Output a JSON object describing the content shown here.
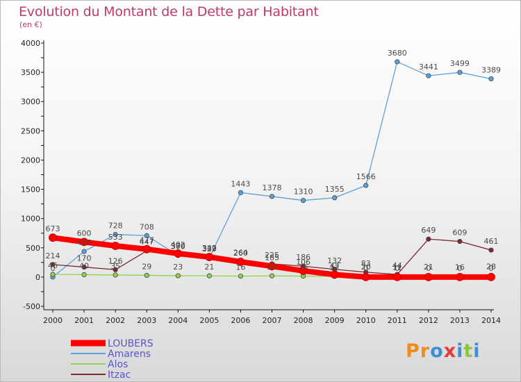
{
  "title": "Evolution du Montant de la Dette par Habitant",
  "subtitle": "(en €)",
  "logo": {
    "letters": [
      "P",
      "r",
      "o",
      "x",
      "i",
      "t",
      "i"
    ],
    "colors": [
      "#f08c1c",
      "#f08c1c",
      "#3a8fd8",
      "#e23a3a",
      "#3a8fd8",
      "#8cc63f",
      "#3a8fd8"
    ]
  },
  "chart_data": {
    "type": "line",
    "x": [
      2000,
      2001,
      2002,
      2003,
      2004,
      2005,
      2006,
      2007,
      2008,
      2009,
      2010,
      2011,
      2012,
      2013,
      2014
    ],
    "ylim": [
      -500,
      4000
    ],
    "yticks": [
      -500,
      0,
      500,
      1000,
      1500,
      2000,
      2500,
      3000,
      3500,
      4000
    ],
    "grid": false,
    "legend": "bottom-left",
    "series": [
      {
        "name": "LOUBERS",
        "color": "#ff0000",
        "values": [
          673,
          600,
          533,
          477,
          402,
          342,
          260,
          185,
          106,
          42,
          0,
          0,
          0,
          0,
          0
        ],
        "labels": [
          "673",
          "600",
          "533",
          "477",
          "402",
          "342",
          "260",
          "185",
          "106",
          "42",
          "0",
          "0",
          "0",
          "0",
          "0"
        ]
      },
      {
        "name": "Amarens",
        "color": "#5ba0d8",
        "values": [
          0,
          437,
          728,
          708,
          370,
          329,
          1443,
          1378,
          1310,
          1355,
          1566,
          3680,
          3441,
          3499,
          3389
        ],
        "labels": [
          "0",
          "437",
          "728",
          "708",
          "370",
          "329",
          "1443",
          "1378",
          "1310",
          "1355",
          "1566",
          "3680",
          "3441",
          "3499",
          "3389"
        ]
      },
      {
        "name": "Alos",
        "color": "#8fd24a",
        "values": [
          46,
          40,
          35,
          29,
          23,
          21,
          16,
          20,
          16,
          12,
          20,
          11,
          21,
          16,
          28
        ],
        "labels": [
          "46",
          "40",
          "35",
          "29",
          "23",
          "21",
          "16",
          "20",
          "16",
          "12",
          "20",
          "11",
          "21",
          "16",
          "28"
        ]
      },
      {
        "name": "Itzac",
        "color": "#7a2a30",
        "values": [
          214,
          170,
          126,
          447,
          380,
          337,
          264,
          225,
          186,
          132,
          83,
          44,
          649,
          609,
          461
        ],
        "labels": [
          "214",
          "170",
          "126",
          "447",
          "380",
          "337",
          "264",
          "225",
          "186",
          "132",
          "83",
          "44",
          "649",
          "609",
          "461"
        ]
      }
    ]
  }
}
